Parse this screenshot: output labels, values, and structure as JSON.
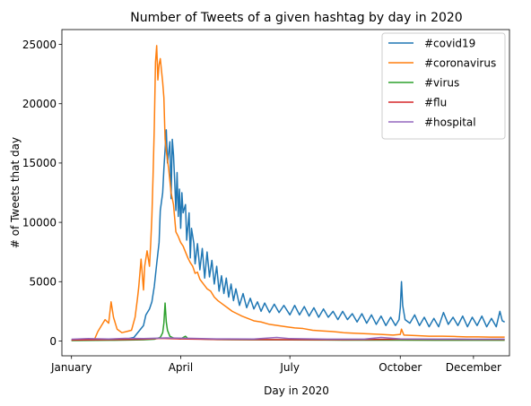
{
  "chart_data": {
    "type": "line",
    "title": "Number of Tweets of a given hashtag by day in 2020",
    "xlabel": "Day in 2020",
    "ylabel": "# of Tweets that day",
    "xlim": [
      "2019-12-24",
      "2020-12-31"
    ],
    "ylim": [
      -1250,
      26250
    ],
    "x_ticks": [
      {
        "label": "January",
        "date": "2020-01-01"
      },
      {
        "label": "April",
        "date": "2020-04-01"
      },
      {
        "label": "July",
        "date": "2020-07-01"
      },
      {
        "label": "October",
        "date": "2020-10-01"
      },
      {
        "label": "December",
        "date": "2020-12-01"
      }
    ],
    "y_ticks": [
      0,
      5000,
      10000,
      15000,
      20000,
      25000
    ],
    "grid": false,
    "legend_position": "upper-right",
    "series": [
      {
        "name": "#covid19",
        "color": "#1f77b4",
        "points": [
          [
            "2020-01-01",
            50
          ],
          [
            "2020-01-15",
            80
          ],
          [
            "2020-02-01",
            100
          ],
          [
            "2020-02-15",
            150
          ],
          [
            "2020-02-22",
            300
          ],
          [
            "2020-02-26",
            800
          ],
          [
            "2020-03-01",
            1300
          ],
          [
            "2020-03-03",
            2200
          ],
          [
            "2020-03-06",
            2700
          ],
          [
            "2020-03-08",
            3300
          ],
          [
            "2020-03-10",
            4600
          ],
          [
            "2020-03-12",
            6500
          ],
          [
            "2020-03-14",
            8300
          ],
          [
            "2020-03-15",
            11000
          ],
          [
            "2020-03-17",
            12500
          ],
          [
            "2020-03-18",
            14500
          ],
          [
            "2020-03-20",
            17800
          ],
          [
            "2020-03-21",
            15000
          ],
          [
            "2020-03-23",
            16800
          ],
          [
            "2020-03-24",
            12000
          ],
          [
            "2020-03-25",
            17000
          ],
          [
            "2020-03-26",
            15700
          ],
          [
            "2020-03-27",
            13500
          ],
          [
            "2020-03-28",
            11000
          ],
          [
            "2020-03-29",
            14200
          ],
          [
            "2020-03-30",
            10500
          ],
          [
            "2020-03-31",
            12800
          ],
          [
            "2020-04-01",
            9500
          ],
          [
            "2020-04-02",
            12500
          ],
          [
            "2020-04-03",
            10800
          ],
          [
            "2020-04-05",
            11500
          ],
          [
            "2020-04-06",
            8500
          ],
          [
            "2020-04-08",
            10800
          ],
          [
            "2020-04-09",
            7000
          ],
          [
            "2020-04-10",
            9500
          ],
          [
            "2020-04-12",
            8200
          ],
          [
            "2020-04-13",
            6500
          ],
          [
            "2020-04-15",
            8200
          ],
          [
            "2020-04-17",
            6000
          ],
          [
            "2020-04-19",
            7800
          ],
          [
            "2020-04-21",
            5300
          ],
          [
            "2020-04-23",
            7500
          ],
          [
            "2020-04-25",
            5400
          ],
          [
            "2020-04-27",
            6800
          ],
          [
            "2020-04-29",
            4800
          ],
          [
            "2020-05-01",
            6300
          ],
          [
            "2020-05-03",
            4200
          ],
          [
            "2020-05-05",
            5500
          ],
          [
            "2020-05-07",
            4000
          ],
          [
            "2020-05-09",
            5300
          ],
          [
            "2020-05-11",
            3700
          ],
          [
            "2020-05-13",
            4800
          ],
          [
            "2020-05-15",
            3400
          ],
          [
            "2020-05-17",
            4400
          ],
          [
            "2020-05-20",
            3000
          ],
          [
            "2020-05-23",
            4000
          ],
          [
            "2020-05-26",
            2800
          ],
          [
            "2020-05-29",
            3600
          ],
          [
            "2020-06-01",
            2700
          ],
          [
            "2020-06-04",
            3300
          ],
          [
            "2020-06-07",
            2500
          ],
          [
            "2020-06-10",
            3200
          ],
          [
            "2020-06-14",
            2400
          ],
          [
            "2020-06-18",
            3100
          ],
          [
            "2020-06-22",
            2400
          ],
          [
            "2020-06-26",
            3000
          ],
          [
            "2020-07-01",
            2200
          ],
          [
            "2020-07-05",
            3000
          ],
          [
            "2020-07-09",
            2200
          ],
          [
            "2020-07-13",
            2900
          ],
          [
            "2020-07-17",
            2100
          ],
          [
            "2020-07-21",
            2800
          ],
          [
            "2020-07-25",
            2000
          ],
          [
            "2020-07-29",
            2700
          ],
          [
            "2020-08-02",
            2000
          ],
          [
            "2020-08-06",
            2500
          ],
          [
            "2020-08-10",
            1800
          ],
          [
            "2020-08-14",
            2500
          ],
          [
            "2020-08-18",
            1800
          ],
          [
            "2020-08-22",
            2300
          ],
          [
            "2020-08-26",
            1600
          ],
          [
            "2020-08-30",
            2300
          ],
          [
            "2020-09-03",
            1500
          ],
          [
            "2020-09-07",
            2200
          ],
          [
            "2020-09-11",
            1400
          ],
          [
            "2020-09-15",
            2100
          ],
          [
            "2020-09-19",
            1300
          ],
          [
            "2020-09-23",
            2000
          ],
          [
            "2020-09-27",
            1300
          ],
          [
            "2020-09-30",
            1800
          ],
          [
            "2020-10-01",
            2800
          ],
          [
            "2020-10-02",
            5000
          ],
          [
            "2020-10-03",
            3000
          ],
          [
            "2020-10-05",
            1800
          ],
          [
            "2020-10-09",
            1500
          ],
          [
            "2020-10-13",
            2200
          ],
          [
            "2020-10-17",
            1300
          ],
          [
            "2020-10-21",
            2000
          ],
          [
            "2020-10-25",
            1200
          ],
          [
            "2020-10-29",
            1900
          ],
          [
            "2020-11-02",
            1200
          ],
          [
            "2020-11-06",
            2400
          ],
          [
            "2020-11-10",
            1400
          ],
          [
            "2020-11-14",
            2000
          ],
          [
            "2020-11-18",
            1300
          ],
          [
            "2020-11-22",
            2100
          ],
          [
            "2020-11-26",
            1200
          ],
          [
            "2020-11-30",
            2000
          ],
          [
            "2020-12-04",
            1300
          ],
          [
            "2020-12-08",
            2100
          ],
          [
            "2020-12-12",
            1200
          ],
          [
            "2020-12-16",
            1900
          ],
          [
            "2020-12-20",
            1200
          ],
          [
            "2020-12-23",
            2500
          ],
          [
            "2020-12-25",
            1700
          ],
          [
            "2020-12-27",
            1600
          ]
        ]
      },
      {
        "name": "#coronavirus",
        "color": "#ff7f0e",
        "points": [
          [
            "2020-01-01",
            50
          ],
          [
            "2020-01-10",
            60
          ],
          [
            "2020-01-20",
            100
          ],
          [
            "2020-01-23",
            800
          ],
          [
            "2020-01-26",
            1300
          ],
          [
            "2020-01-29",
            1800
          ],
          [
            "2020-02-01",
            1500
          ],
          [
            "2020-02-03",
            3300
          ],
          [
            "2020-02-05",
            2000
          ],
          [
            "2020-02-08",
            1000
          ],
          [
            "2020-02-12",
            700
          ],
          [
            "2020-02-16",
            800
          ],
          [
            "2020-02-20",
            900
          ],
          [
            "2020-02-23",
            2000
          ],
          [
            "2020-02-25",
            3600
          ],
          [
            "2020-02-26",
            4500
          ],
          [
            "2020-02-28",
            6900
          ],
          [
            "2020-03-01",
            4300
          ],
          [
            "2020-03-02",
            6300
          ],
          [
            "2020-03-04",
            7600
          ],
          [
            "2020-03-06",
            6300
          ],
          [
            "2020-03-07",
            8200
          ],
          [
            "2020-03-08",
            10500
          ],
          [
            "2020-03-09",
            14000
          ],
          [
            "2020-03-10",
            18000
          ],
          [
            "2020-03-11",
            23500
          ],
          [
            "2020-03-12",
            24900
          ],
          [
            "2020-03-13",
            22000
          ],
          [
            "2020-03-14",
            23300
          ],
          [
            "2020-03-15",
            23800
          ],
          [
            "2020-03-17",
            21800
          ],
          [
            "2020-03-18",
            20500
          ],
          [
            "2020-03-19",
            17000
          ],
          [
            "2020-03-20",
            16000
          ],
          [
            "2020-03-22",
            14500
          ],
          [
            "2020-03-24",
            12500
          ],
          [
            "2020-03-26",
            11500
          ],
          [
            "2020-03-28",
            9200
          ],
          [
            "2020-03-30",
            8800
          ],
          [
            "2020-04-01",
            8300
          ],
          [
            "2020-04-03",
            8000
          ],
          [
            "2020-04-05",
            7500
          ],
          [
            "2020-04-07",
            7000
          ],
          [
            "2020-04-09",
            6600
          ],
          [
            "2020-04-11",
            6300
          ],
          [
            "2020-04-13",
            5700
          ],
          [
            "2020-04-15",
            5800
          ],
          [
            "2020-04-17",
            5200
          ],
          [
            "2020-04-20",
            4800
          ],
          [
            "2020-04-23",
            4400
          ],
          [
            "2020-04-26",
            4200
          ],
          [
            "2020-04-29",
            3700
          ],
          [
            "2020-05-02",
            3400
          ],
          [
            "2020-05-06",
            3100
          ],
          [
            "2020-05-10",
            2800
          ],
          [
            "2020-05-14",
            2500
          ],
          [
            "2020-05-18",
            2300
          ],
          [
            "2020-05-22",
            2100
          ],
          [
            "2020-05-27",
            1900
          ],
          [
            "2020-06-01",
            1700
          ],
          [
            "2020-06-07",
            1600
          ],
          [
            "2020-06-14",
            1400
          ],
          [
            "2020-06-21",
            1300
          ],
          [
            "2020-06-28",
            1200
          ],
          [
            "2020-07-05",
            1100
          ],
          [
            "2020-07-12",
            1050
          ],
          [
            "2020-07-20",
            900
          ],
          [
            "2020-07-28",
            850
          ],
          [
            "2020-08-05",
            800
          ],
          [
            "2020-08-15",
            700
          ],
          [
            "2020-08-25",
            650
          ],
          [
            "2020-09-05",
            600
          ],
          [
            "2020-09-15",
            550
          ],
          [
            "2020-09-25",
            500
          ],
          [
            "2020-10-01",
            550
          ],
          [
            "2020-10-02",
            1000
          ],
          [
            "2020-10-04",
            500
          ],
          [
            "2020-10-15",
            450
          ],
          [
            "2020-10-25",
            400
          ],
          [
            "2020-11-05",
            400
          ],
          [
            "2020-11-15",
            380
          ],
          [
            "2020-11-25",
            350
          ],
          [
            "2020-12-05",
            350
          ],
          [
            "2020-12-15",
            330
          ],
          [
            "2020-12-27",
            330
          ]
        ]
      },
      {
        "name": "#virus",
        "color": "#2ca02c",
        "points": [
          [
            "2020-01-01",
            30
          ],
          [
            "2020-02-01",
            60
          ],
          [
            "2020-03-01",
            100
          ],
          [
            "2020-03-10",
            150
          ],
          [
            "2020-03-15",
            300
          ],
          [
            "2020-03-17",
            700
          ],
          [
            "2020-03-18",
            1500
          ],
          [
            "2020-03-19",
            3200
          ],
          [
            "2020-03-20",
            1600
          ],
          [
            "2020-03-21",
            900
          ],
          [
            "2020-03-23",
            400
          ],
          [
            "2020-03-26",
            250
          ],
          [
            "2020-04-01",
            180
          ],
          [
            "2020-04-05",
            400
          ],
          [
            "2020-04-07",
            200
          ],
          [
            "2020-05-01",
            120
          ],
          [
            "2020-06-01",
            100
          ],
          [
            "2020-07-01",
            90
          ],
          [
            "2020-08-01",
            80
          ],
          [
            "2020-09-01",
            70
          ],
          [
            "2020-10-01",
            70
          ],
          [
            "2020-11-01",
            60
          ],
          [
            "2020-12-01",
            60
          ],
          [
            "2020-12-27",
            60
          ]
        ]
      },
      {
        "name": "#flu",
        "color": "#d62728",
        "points": [
          [
            "2020-01-01",
            80
          ],
          [
            "2020-01-20",
            100
          ],
          [
            "2020-02-10",
            120
          ],
          [
            "2020-03-01",
            150
          ],
          [
            "2020-03-15",
            220
          ],
          [
            "2020-04-01",
            180
          ],
          [
            "2020-05-01",
            130
          ],
          [
            "2020-06-01",
            120
          ],
          [
            "2020-07-01",
            110
          ],
          [
            "2020-08-01",
            110
          ],
          [
            "2020-09-01",
            120
          ],
          [
            "2020-10-01",
            150
          ],
          [
            "2020-11-01",
            140
          ],
          [
            "2020-12-01",
            130
          ],
          [
            "2020-12-27",
            130
          ]
        ]
      },
      {
        "name": "#hospital",
        "color": "#9467bd",
        "points": [
          [
            "2020-01-01",
            150
          ],
          [
            "2020-01-15",
            200
          ],
          [
            "2020-02-01",
            170
          ],
          [
            "2020-02-15",
            220
          ],
          [
            "2020-03-01",
            200
          ],
          [
            "2020-03-20",
            260
          ],
          [
            "2020-04-10",
            220
          ],
          [
            "2020-05-01",
            180
          ],
          [
            "2020-06-01",
            170
          ],
          [
            "2020-06-20",
            300
          ],
          [
            "2020-07-01",
            200
          ],
          [
            "2020-08-01",
            160
          ],
          [
            "2020-09-01",
            160
          ],
          [
            "2020-09-15",
            300
          ],
          [
            "2020-10-01",
            180
          ],
          [
            "2020-11-01",
            160
          ],
          [
            "2020-12-01",
            150
          ],
          [
            "2020-12-27",
            160
          ]
        ]
      }
    ]
  }
}
